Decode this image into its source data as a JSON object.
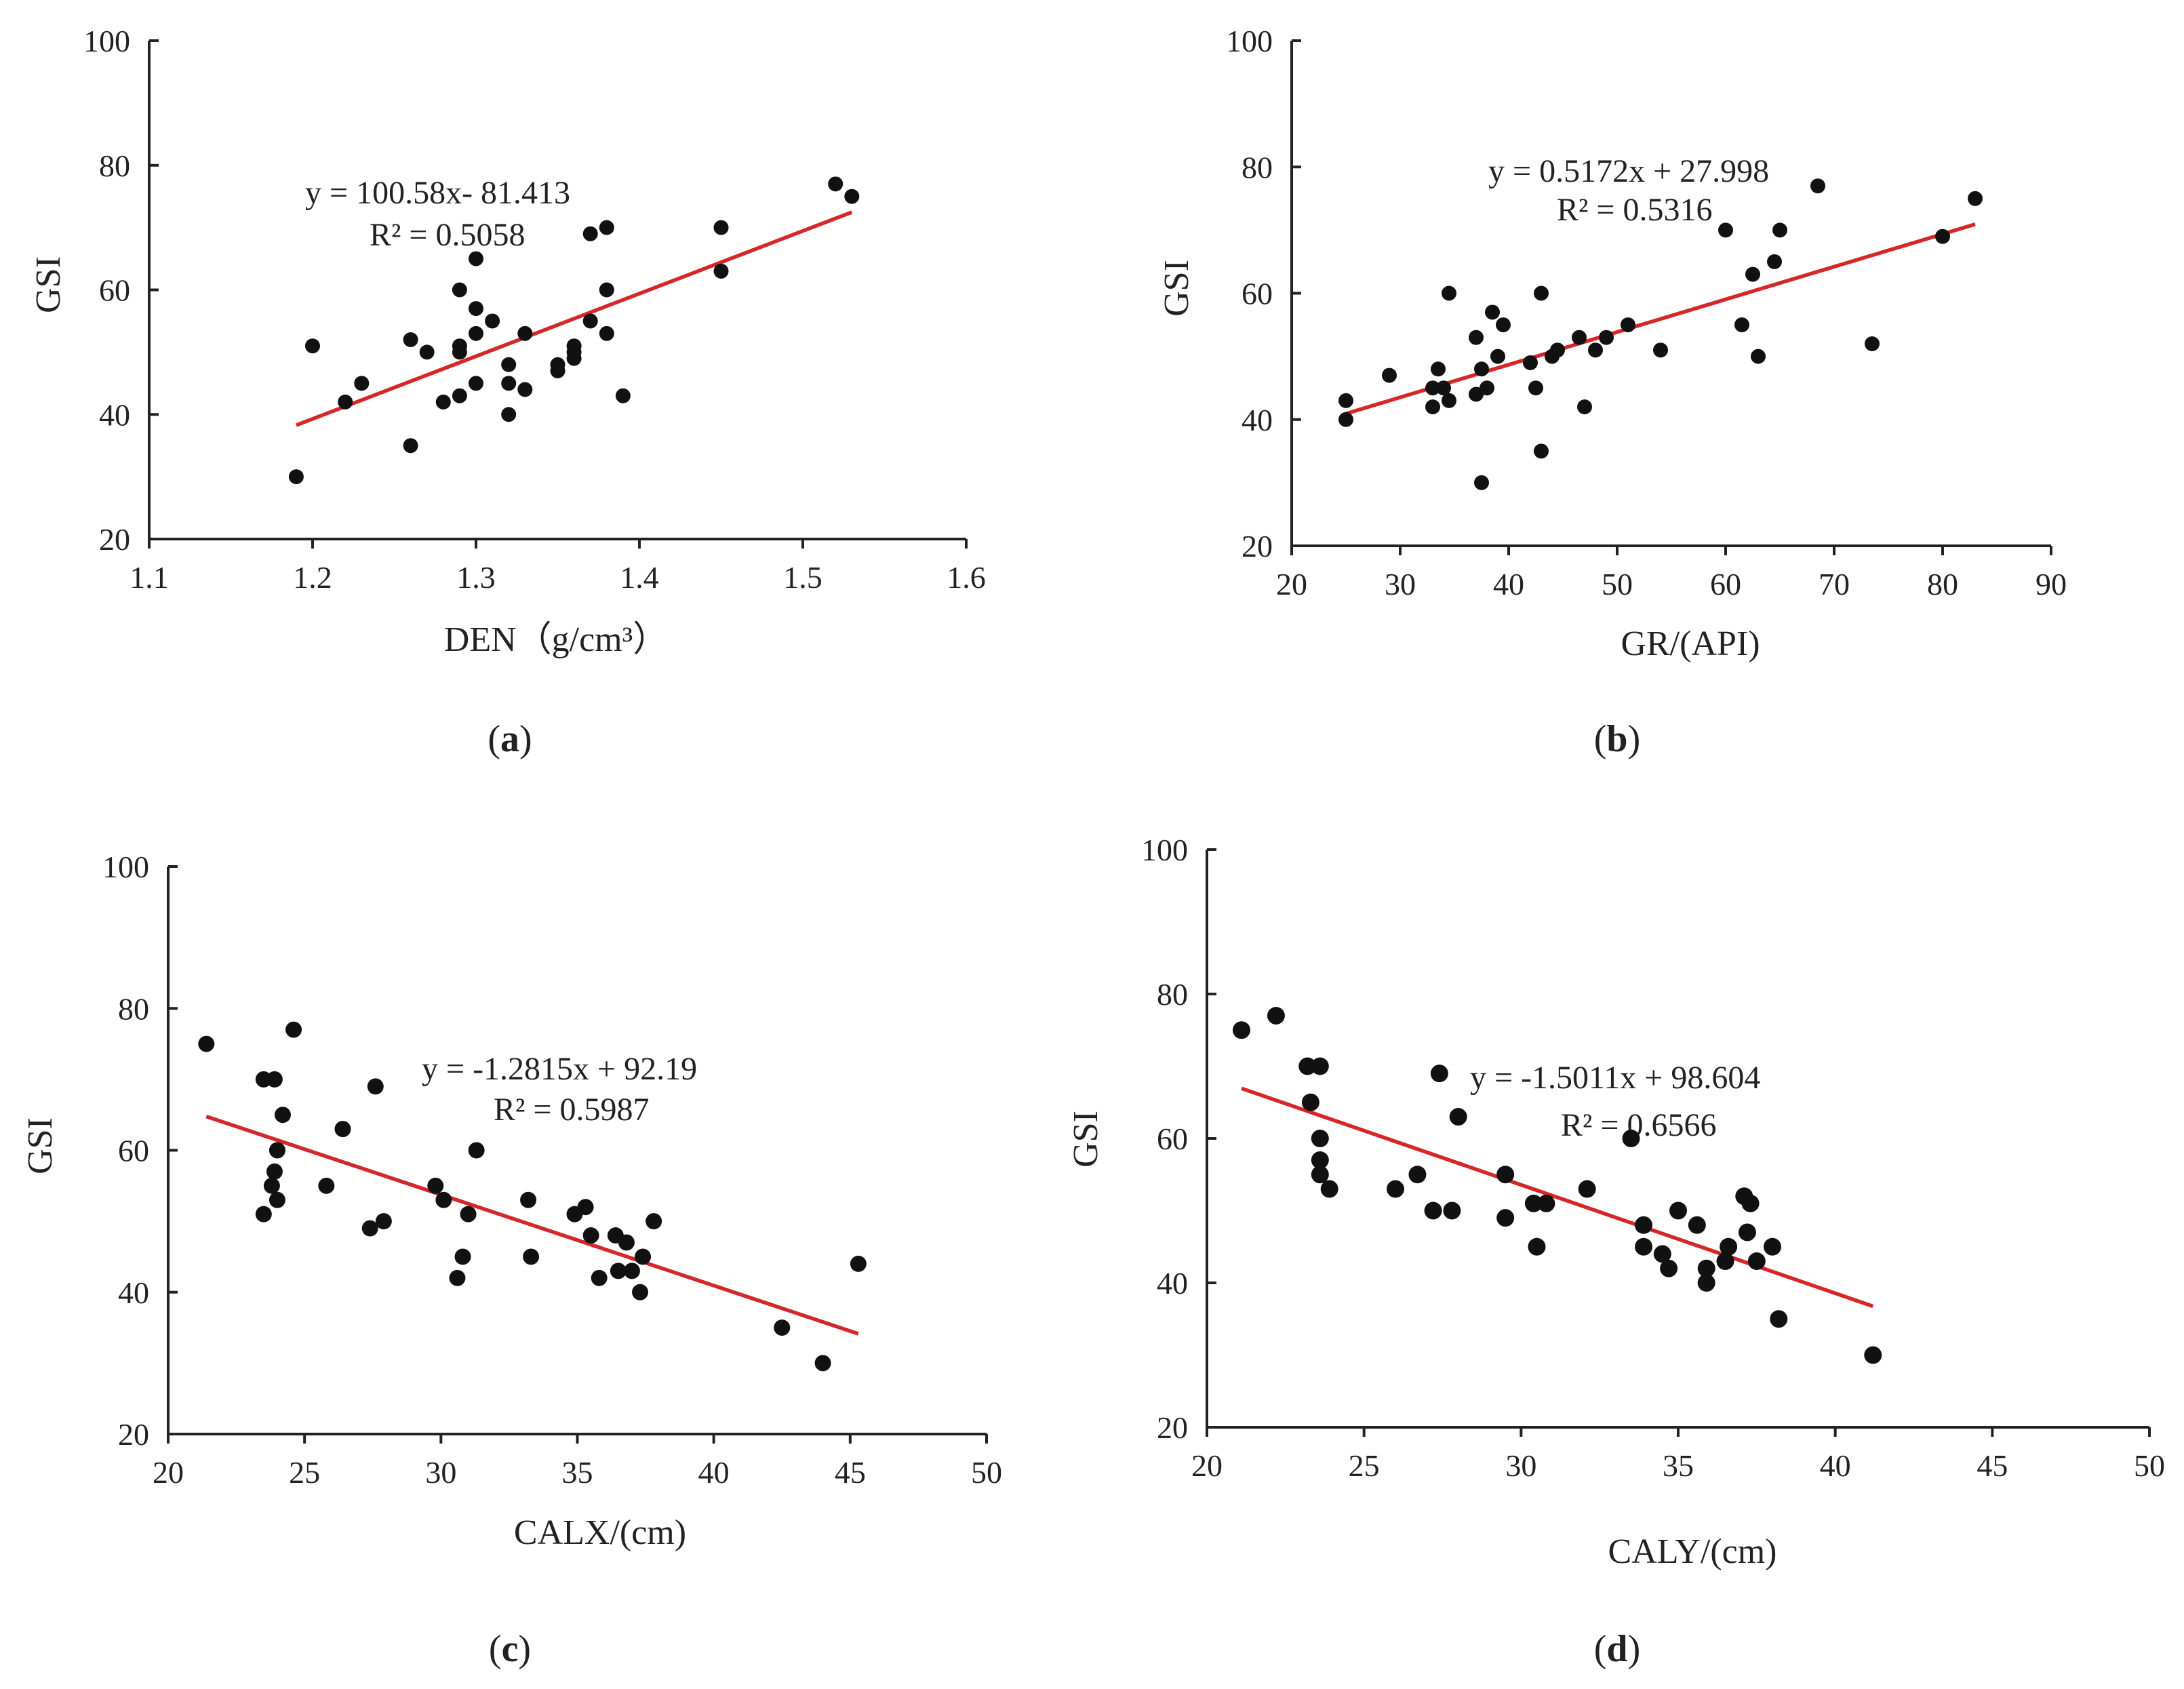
{
  "figure": {
    "accent_color": "#d62728",
    "point_color": "#111111"
  },
  "chart_data": [
    {
      "id": "a",
      "type": "scatter",
      "label": "a",
      "xlabel": "DEN（g/cm³）",
      "ylabel": "GSI",
      "xlim": [
        1.1,
        1.6
      ],
      "ylim": [
        20,
        100
      ],
      "xticks": [
        1.1,
        1.2,
        1.3,
        1.4,
        1.5,
        1.6
      ],
      "xtick_labels": [
        "1.1",
        "1.2",
        "1.3",
        "1.4",
        "1.5",
        "1.6"
      ],
      "yticks": [
        20,
        40,
        60,
        80,
        100
      ],
      "ytick_labels": [
        "20",
        "40",
        "60",
        "80",
        "100"
      ],
      "equation": "y = 100.58x- 81.413",
      "r_squared": "R² = 0.5058",
      "fit": {
        "slope": 100.58,
        "intercept": -81.413,
        "x_range": [
          1.19,
          1.53
        ]
      },
      "points": [
        [
          1.19,
          30
        ],
        [
          1.2,
          51
        ],
        [
          1.22,
          42
        ],
        [
          1.23,
          45
        ],
        [
          1.26,
          35
        ],
        [
          1.26,
          52
        ],
        [
          1.27,
          50
        ],
        [
          1.28,
          42
        ],
        [
          1.29,
          43
        ],
        [
          1.29,
          50
        ],
        [
          1.29,
          51
        ],
        [
          1.29,
          60
        ],
        [
          1.3,
          45
        ],
        [
          1.3,
          53
        ],
        [
          1.3,
          57
        ],
        [
          1.3,
          65
        ],
        [
          1.31,
          55
        ],
        [
          1.32,
          40
        ],
        [
          1.32,
          45
        ],
        [
          1.32,
          48
        ],
        [
          1.33,
          44
        ],
        [
          1.33,
          53
        ],
        [
          1.35,
          47
        ],
        [
          1.35,
          48
        ],
        [
          1.36,
          49
        ],
        [
          1.36,
          50
        ],
        [
          1.36,
          51
        ],
        [
          1.37,
          55
        ],
        [
          1.37,
          69
        ],
        [
          1.38,
          53
        ],
        [
          1.38,
          60
        ],
        [
          1.38,
          70
        ],
        [
          1.39,
          43
        ],
        [
          1.45,
          63
        ],
        [
          1.45,
          70
        ],
        [
          1.52,
          77
        ],
        [
          1.53,
          75
        ]
      ]
    },
    {
      "id": "b",
      "type": "scatter",
      "label": "b",
      "xlabel": "GR/(API)",
      "ylabel": "GSI",
      "xlim": [
        20,
        90
      ],
      "ylim": [
        20,
        100
      ],
      "xticks": [
        20,
        30,
        40,
        50,
        60,
        70,
        80,
        90
      ],
      "xtick_labels": [
        "20",
        "30",
        "40",
        "50",
        "60",
        "70",
        "80",
        "90"
      ],
      "yticks": [
        20,
        40,
        60,
        80,
        100
      ],
      "ytick_labels": [
        "20",
        "40",
        "60",
        "80",
        "100"
      ],
      "equation": "y = 0.5172x + 27.998",
      "r_squared": "R² = 0.5316",
      "fit": {
        "slope": 0.5172,
        "intercept": 27.998,
        "x_range": [
          25,
          83
        ]
      },
      "points": [
        [
          25,
          40
        ],
        [
          25,
          43
        ],
        [
          29,
          47
        ],
        [
          33,
          42
        ],
        [
          33,
          45
        ],
        [
          33.5,
          48
        ],
        [
          34,
          45
        ],
        [
          34.5,
          43
        ],
        [
          34.5,
          60
        ],
        [
          37,
          44
        ],
        [
          37,
          53
        ],
        [
          37.5,
          30
        ],
        [
          37.5,
          48
        ],
        [
          38,
          45
        ],
        [
          38.5,
          57
        ],
        [
          39,
          50
        ],
        [
          39.5,
          55
        ],
        [
          42,
          49
        ],
        [
          42.5,
          45
        ],
        [
          43,
          35
        ],
        [
          43,
          60
        ],
        [
          44,
          50
        ],
        [
          44.5,
          51
        ],
        [
          46.5,
          53
        ],
        [
          47,
          42
        ],
        [
          48,
          51
        ],
        [
          49,
          53
        ],
        [
          51,
          55
        ],
        [
          54,
          51
        ],
        [
          60,
          70
        ],
        [
          61.5,
          55
        ],
        [
          62.5,
          63
        ],
        [
          63,
          50
        ],
        [
          64.5,
          65
        ],
        [
          65,
          70
        ],
        [
          68.5,
          77
        ],
        [
          73.5,
          52
        ],
        [
          80,
          69
        ],
        [
          83,
          75
        ]
      ]
    },
    {
      "id": "c",
      "type": "scatter",
      "label": "c",
      "xlabel": "CALX/(cm)",
      "ylabel": "GSI",
      "xlim": [
        20,
        50
      ],
      "ylim": [
        20,
        100
      ],
      "xticks": [
        20,
        25,
        30,
        35,
        40,
        45,
        50
      ],
      "xtick_labels": [
        "20",
        "25",
        "30",
        "35",
        "40",
        "45",
        "50"
      ],
      "yticks": [
        20,
        40,
        60,
        80,
        100
      ],
      "ytick_labels": [
        "20",
        "40",
        "60",
        "80",
        "100"
      ],
      "equation": "y = -1.2815x + 92.19",
      "r_squared": "R² = 0.5987",
      "fit": {
        "slope": -1.2815,
        "intercept": 92.19,
        "x_range": [
          21.4,
          45.3
        ]
      },
      "points": [
        [
          21.4,
          75
        ],
        [
          23.5,
          51
        ],
        [
          23.5,
          70
        ],
        [
          23.8,
          55
        ],
        [
          23.9,
          70
        ],
        [
          23.9,
          57
        ],
        [
          24.0,
          53
        ],
        [
          24.0,
          60
        ],
        [
          24.2,
          65
        ],
        [
          24.6,
          77
        ],
        [
          25.8,
          55
        ],
        [
          26.4,
          63
        ],
        [
          27.4,
          49
        ],
        [
          27.6,
          69
        ],
        [
          27.9,
          50
        ],
        [
          29.8,
          55
        ],
        [
          30.1,
          53
        ],
        [
          30.6,
          42
        ],
        [
          30.8,
          45
        ],
        [
          31.0,
          51
        ],
        [
          31.3,
          60
        ],
        [
          33.2,
          53
        ],
        [
          33.3,
          45
        ],
        [
          34.9,
          51
        ],
        [
          35.3,
          52
        ],
        [
          35.5,
          48
        ],
        [
          35.8,
          42
        ],
        [
          36.4,
          48
        ],
        [
          36.5,
          43
        ],
        [
          36.8,
          47
        ],
        [
          37.0,
          43
        ],
        [
          37.3,
          40
        ],
        [
          37.4,
          45
        ],
        [
          37.8,
          50
        ],
        [
          42.5,
          35
        ],
        [
          44.0,
          30
        ],
        [
          45.3,
          44
        ]
      ]
    },
    {
      "id": "d",
      "type": "scatter",
      "label": "d",
      "xlabel": "CALY/(cm)",
      "ylabel": "GSI",
      "xlim": [
        20,
        50
      ],
      "ylim": [
        20,
        100
      ],
      "xticks": [
        20,
        25,
        30,
        35,
        40,
        45,
        50
      ],
      "xtick_labels": [
        "20",
        "25",
        "30",
        "35",
        "40",
        "45",
        "50"
      ],
      "yticks": [
        20,
        40,
        60,
        80,
        100
      ],
      "ytick_labels": [
        "20",
        "40",
        "60",
        "80",
        "100"
      ],
      "equation": "y = -1.5011x + 98.604",
      "r_squared": "R² = 0.6566",
      "fit": {
        "slope": -1.5011,
        "intercept": 98.604,
        "x_range": [
          21.1,
          41.2
        ]
      },
      "points": [
        [
          21.1,
          75
        ],
        [
          22.2,
          77
        ],
        [
          23.2,
          70
        ],
        [
          23.3,
          65
        ],
        [
          23.6,
          70
        ],
        [
          23.6,
          60
        ],
        [
          23.6,
          57
        ],
        [
          23.6,
          55
        ],
        [
          23.9,
          53
        ],
        [
          26.0,
          53
        ],
        [
          26.7,
          55
        ],
        [
          27.2,
          50
        ],
        [
          27.4,
          69
        ],
        [
          27.8,
          50
        ],
        [
          28.0,
          63
        ],
        [
          29.5,
          55
        ],
        [
          29.5,
          49
        ],
        [
          30.4,
          51
        ],
        [
          30.5,
          45
        ],
        [
          30.8,
          51
        ],
        [
          32.1,
          53
        ],
        [
          33.5,
          60
        ],
        [
          33.9,
          48
        ],
        [
          33.9,
          45
        ],
        [
          34.5,
          44
        ],
        [
          34.7,
          42
        ],
        [
          35.0,
          50
        ],
        [
          35.6,
          48
        ],
        [
          35.9,
          42
        ],
        [
          35.9,
          40
        ],
        [
          36.5,
          43
        ],
        [
          36.6,
          45
        ],
        [
          37.1,
          52
        ],
        [
          37.2,
          47
        ],
        [
          37.3,
          51
        ],
        [
          37.5,
          43
        ],
        [
          38.0,
          45
        ],
        [
          38.2,
          35
        ],
        [
          41.2,
          30
        ]
      ]
    }
  ]
}
